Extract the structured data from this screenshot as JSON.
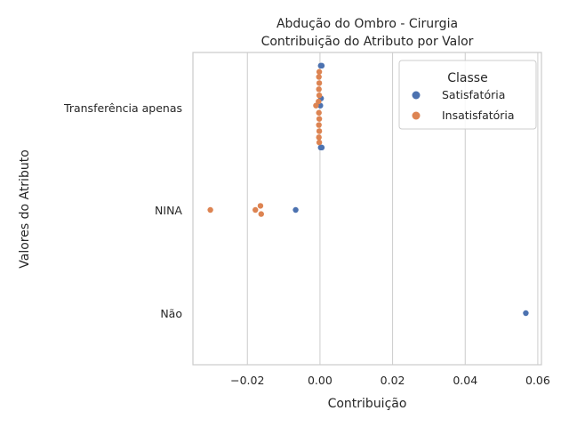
{
  "chart_data": {
    "type": "scatter",
    "title_line1": "Abdução do Ombro - Cirurgia",
    "title_line2": "Contribuição do Atributo por Valor",
    "xlabel": "Contribuição",
    "ylabel": "Valores do Atributo",
    "xlim": [
      -0.035,
      0.061
    ],
    "x_ticks": [
      -0.02,
      0.0,
      0.02,
      0.04,
      0.06
    ],
    "x_tick_labels": [
      "−0.02",
      "0.00",
      "0.02",
      "0.04",
      "0.06"
    ],
    "categories": [
      "Transferência apenas",
      "NINA",
      "Não"
    ],
    "grid": "vertical",
    "legend": {
      "title": "Classe",
      "placement": "top-right"
    },
    "series": [
      {
        "name": "Satisfatória",
        "color": "#4c72b0",
        "points": [
          {
            "category": "Transferência apenas",
            "x": 0.0002,
            "offset": -0.41
          },
          {
            "category": "Transferência apenas",
            "x": 0.0005,
            "offset": -0.41
          },
          {
            "category": "Transferência apenas",
            "x": 0.0003,
            "offset": -0.09
          },
          {
            "category": "Transferência apenas",
            "x": 0.0001,
            "offset": -0.02
          },
          {
            "category": "Transferência apenas",
            "x": 0.0002,
            "offset": 0.39
          },
          {
            "category": "Transferência apenas",
            "x": 0.0005,
            "offset": 0.39
          },
          {
            "category": "NINA",
            "x": -0.0067,
            "offset": 0.0
          },
          {
            "category": "Não",
            "x": 0.0567,
            "offset": 0.0
          }
        ]
      },
      {
        "name": "Insatisfatória",
        "color": "#dd8452",
        "points": [
          {
            "category": "Transferência apenas",
            "x": -0.0002,
            "offset": -0.35
          },
          {
            "category": "Transferência apenas",
            "x": -0.0003,
            "offset": -0.3
          },
          {
            "category": "Transferência apenas",
            "x": -0.0002,
            "offset": -0.24
          },
          {
            "category": "Transferência apenas",
            "x": -0.0003,
            "offset": -0.18
          },
          {
            "category": "Transferência apenas",
            "x": -0.0002,
            "offset": -0.12
          },
          {
            "category": "Transferência apenas",
            "x": -0.0004,
            "offset": -0.06
          },
          {
            "category": "Transferência apenas",
            "x": -0.0011,
            "offset": -0.02
          },
          {
            "category": "Transferência apenas",
            "x": -0.0003,
            "offset": 0.05
          },
          {
            "category": "Transferência apenas",
            "x": -0.0002,
            "offset": 0.11
          },
          {
            "category": "Transferência apenas",
            "x": -0.0003,
            "offset": 0.17
          },
          {
            "category": "Transferência apenas",
            "x": -0.0002,
            "offset": 0.23
          },
          {
            "category": "Transferência apenas",
            "x": -0.0003,
            "offset": 0.29
          },
          {
            "category": "Transferência apenas",
            "x": -0.0002,
            "offset": 0.34
          },
          {
            "category": "NINA",
            "x": -0.0302,
            "offset": 0.0
          },
          {
            "category": "NINA",
            "x": -0.0178,
            "offset": 0.0
          },
          {
            "category": "NINA",
            "x": -0.0164,
            "offset": -0.04
          },
          {
            "category": "NINA",
            "x": -0.0162,
            "offset": 0.04
          }
        ]
      }
    ]
  }
}
